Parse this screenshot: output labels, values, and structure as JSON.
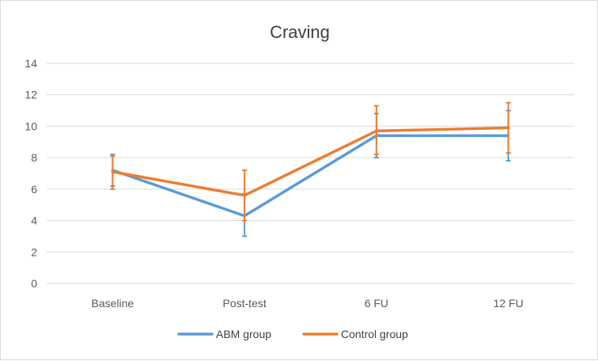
{
  "chart_data": {
    "type": "line",
    "title": "Craving",
    "xlabel": "",
    "ylabel": "",
    "categories": [
      "Baseline",
      "Post-test",
      "6 FU",
      "12 FU"
    ],
    "ylim": [
      0,
      14
    ],
    "yticks": [
      0,
      2,
      4,
      6,
      8,
      10,
      12,
      14
    ],
    "grid": true,
    "legend_position": "bottom",
    "series": [
      {
        "name": "ABM group",
        "color": "#5b9bd5",
        "values": [
          7.2,
          4.3,
          9.4,
          9.4
        ],
        "error_low": [
          6.2,
          3.0,
          8.0,
          7.8
        ],
        "error_high": [
          8.2,
          5.7,
          10.8,
          11.0
        ]
      },
      {
        "name": "Control group",
        "color": "#ed7d31",
        "values": [
          7.1,
          5.6,
          9.7,
          9.9
        ],
        "error_low": [
          6.0,
          4.0,
          8.2,
          8.3
        ],
        "error_high": [
          8.1,
          7.2,
          11.3,
          11.5
        ]
      }
    ]
  }
}
